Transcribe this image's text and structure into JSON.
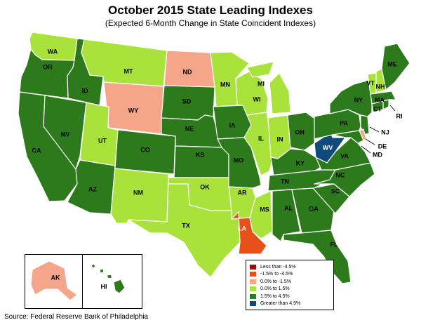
{
  "title": "October 2015 State Leading Indexes",
  "subtitle": "(Expected 6-Month Change in State Coincident Indexes)",
  "source": "Source: Federal Reserve Bank of Philadelphia",
  "colors": {
    "lt_neg4_5": "#9b0d0d",
    "neg1_5_to_neg4_5": "#e8501a",
    "0_to_neg1_5": "#f5a58a",
    "0_to_1_5": "#a9e23a",
    "1_5_to_4_5": "#2d7a1c",
    "gt_4_5": "#0e4b7a"
  },
  "legend": [
    {
      "key": "lt_neg4_5",
      "label": "Less than -4.5%"
    },
    {
      "key": "neg1_5_to_neg4_5",
      "label": "-1.5% to -4.5%"
    },
    {
      "key": "0_to_neg1_5",
      "label": "0.0% to -1.5%"
    },
    {
      "key": "0_to_1_5",
      "label": "0.0% to  1.5%"
    },
    {
      "key": "1_5_to_4_5",
      "label": "1.5% to  4.5%"
    },
    {
      "key": "gt_4_5",
      "label": "Greater than 4.5%"
    }
  ],
  "states": [
    {
      "abbr": "WA",
      "category": "0_to_1_5"
    },
    {
      "abbr": "OR",
      "category": "1_5_to_4_5"
    },
    {
      "abbr": "CA",
      "category": "1_5_to_4_5"
    },
    {
      "abbr": "ID",
      "category": "1_5_to_4_5"
    },
    {
      "abbr": "NV",
      "category": "1_5_to_4_5"
    },
    {
      "abbr": "MT",
      "category": "0_to_1_5"
    },
    {
      "abbr": "WY",
      "category": "0_to_neg1_5"
    },
    {
      "abbr": "UT",
      "category": "0_to_1_5"
    },
    {
      "abbr": "AZ",
      "category": "1_5_to_4_5"
    },
    {
      "abbr": "CO",
      "category": "1_5_to_4_5"
    },
    {
      "abbr": "NM",
      "category": "0_to_1_5"
    },
    {
      "abbr": "ND",
      "category": "0_to_neg1_5"
    },
    {
      "abbr": "SD",
      "category": "1_5_to_4_5"
    },
    {
      "abbr": "NE",
      "category": "1_5_to_4_5"
    },
    {
      "abbr": "KS",
      "category": "1_5_to_4_5"
    },
    {
      "abbr": "OK",
      "category": "0_to_1_5"
    },
    {
      "abbr": "TX",
      "category": "0_to_1_5"
    },
    {
      "abbr": "MN",
      "category": "0_to_1_5"
    },
    {
      "abbr": "IA",
      "category": "1_5_to_4_5"
    },
    {
      "abbr": "MO",
      "category": "1_5_to_4_5"
    },
    {
      "abbr": "AR",
      "category": "0_to_1_5"
    },
    {
      "abbr": "LA",
      "category": "neg1_5_to_neg4_5"
    },
    {
      "abbr": "WI",
      "category": "0_to_1_5"
    },
    {
      "abbr": "IL",
      "category": "0_to_1_5"
    },
    {
      "abbr": "MI",
      "category": "0_to_1_5"
    },
    {
      "abbr": "IN",
      "category": "0_to_1_5"
    },
    {
      "abbr": "OH",
      "category": "1_5_to_4_5"
    },
    {
      "abbr": "KY",
      "category": "1_5_to_4_5"
    },
    {
      "abbr": "TN",
      "category": "1_5_to_4_5"
    },
    {
      "abbr": "MS",
      "category": "0_to_1_5"
    },
    {
      "abbr": "AL",
      "category": "1_5_to_4_5"
    },
    {
      "abbr": "GA",
      "category": "1_5_to_4_5"
    },
    {
      "abbr": "FL",
      "category": "1_5_to_4_5"
    },
    {
      "abbr": "SC",
      "category": "1_5_to_4_5"
    },
    {
      "abbr": "NC",
      "category": "1_5_to_4_5"
    },
    {
      "abbr": "VA",
      "category": "1_5_to_4_5"
    },
    {
      "abbr": "WV",
      "category": "gt_4_5"
    },
    {
      "abbr": "PA",
      "category": "1_5_to_4_5"
    },
    {
      "abbr": "NY",
      "category": "1_5_to_4_5"
    },
    {
      "abbr": "VT",
      "category": "0_to_1_5"
    },
    {
      "abbr": "NH",
      "category": "0_to_1_5"
    },
    {
      "abbr": "ME",
      "category": "1_5_to_4_5"
    },
    {
      "abbr": "MA",
      "category": "1_5_to_4_5"
    },
    {
      "abbr": "RI",
      "category": "1_5_to_4_5"
    },
    {
      "abbr": "CT",
      "category": "1_5_to_4_5"
    },
    {
      "abbr": "NJ",
      "category": "1_5_to_4_5"
    },
    {
      "abbr": "DE",
      "category": "0_to_neg1_5"
    },
    {
      "abbr": "MD",
      "category": "1_5_to_4_5"
    },
    {
      "abbr": "AK",
      "category": "0_to_neg1_5"
    },
    {
      "abbr": "HI",
      "category": "1_5_to_4_5"
    }
  ]
}
